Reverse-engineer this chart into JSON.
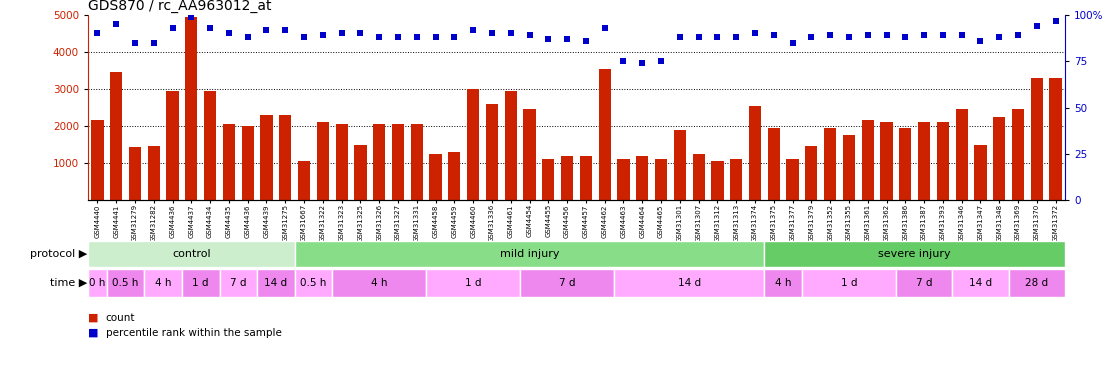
{
  "title": "GDS870 / rc_AA963012_at",
  "samples": [
    "GSM4440",
    "GSM4441",
    "GSM31279",
    "GSM31282",
    "GSM4436",
    "GSM4437",
    "GSM4434",
    "GSM4435",
    "GSM4436",
    "GSM4439",
    "GSM31275",
    "GSM31667",
    "GSM31322",
    "GSM31323",
    "GSM31325",
    "GSM31326",
    "GSM31327",
    "GSM31331",
    "GSM4458",
    "GSM4459",
    "GSM4460",
    "GSM31336",
    "GSM4461",
    "GSM4454",
    "GSM4455",
    "GSM4456",
    "GSM4457",
    "GSM4462",
    "GSM4463",
    "GSM4464",
    "GSM4465",
    "GSM31301",
    "GSM31307",
    "GSM31312",
    "GSM31313",
    "GSM31374",
    "GSM31375",
    "GSM31377",
    "GSM31379",
    "GSM31352",
    "GSM31355",
    "GSM31361",
    "GSM31362",
    "GSM31386",
    "GSM31387",
    "GSM31393",
    "GSM31346",
    "GSM31347",
    "GSM31348",
    "GSM31369",
    "GSM31370",
    "GSM31372"
  ],
  "counts": [
    2150,
    3450,
    1420,
    1460,
    2950,
    4950,
    2950,
    2050,
    2000,
    2300,
    2300,
    1050,
    2100,
    2050,
    1500,
    2050,
    2050,
    2050,
    1250,
    1300,
    3000,
    2600,
    2950,
    2450,
    1100,
    1200,
    1200,
    3550,
    1100,
    1200,
    1100,
    1900,
    1250,
    1050,
    1100,
    2550,
    1950,
    1100,
    1450,
    1950,
    1750,
    2150,
    2100,
    1950,
    2100,
    2100,
    2450,
    1500,
    2250,
    2450,
    3300,
    3300
  ],
  "percentiles": [
    90,
    95,
    85,
    85,
    93,
    99,
    93,
    90,
    88,
    92,
    92,
    88,
    89,
    90,
    90,
    88,
    88,
    88,
    88,
    88,
    92,
    90,
    90,
    89,
    87,
    87,
    86,
    93,
    75,
    74,
    75,
    88,
    88,
    88,
    88,
    90,
    89,
    85,
    88,
    89,
    88,
    89,
    89,
    88,
    89,
    89,
    89,
    86,
    88,
    89,
    94,
    97
  ],
  "bar_color": "#cc2200",
  "dot_color": "#0000cc",
  "ylim_left": [
    0,
    5000
  ],
  "ylim_right": [
    0,
    100
  ],
  "yticks_left": [
    1000,
    2000,
    3000,
    4000,
    5000
  ],
  "yticks_right": [
    0,
    25,
    50,
    75,
    100
  ],
  "protocol_groups": [
    {
      "label": "control",
      "start": 0,
      "end": 11,
      "color": "#cceecc"
    },
    {
      "label": "mild injury",
      "start": 11,
      "end": 36,
      "color": "#88dd88"
    },
    {
      "label": "severe injury",
      "start": 36,
      "end": 52,
      "color": "#66cc66"
    }
  ],
  "time_groups": [
    {
      "label": "0 h",
      "start": 0,
      "end": 1,
      "color": "#ffaaff"
    },
    {
      "label": "0.5 h",
      "start": 1,
      "end": 3,
      "color": "#ee88ee"
    },
    {
      "label": "4 h",
      "start": 3,
      "end": 5,
      "color": "#ffaaff"
    },
    {
      "label": "1 d",
      "start": 5,
      "end": 7,
      "color": "#ee88ee"
    },
    {
      "label": "7 d",
      "start": 7,
      "end": 9,
      "color": "#ffaaff"
    },
    {
      "label": "14 d",
      "start": 9,
      "end": 11,
      "color": "#ee88ee"
    },
    {
      "label": "0.5 h",
      "start": 11,
      "end": 13,
      "color": "#ffaaff"
    },
    {
      "label": "4 h",
      "start": 13,
      "end": 18,
      "color": "#ee88ee"
    },
    {
      "label": "1 d",
      "start": 18,
      "end": 23,
      "color": "#ffaaff"
    },
    {
      "label": "7 d",
      "start": 23,
      "end": 28,
      "color": "#ee88ee"
    },
    {
      "label": "14 d",
      "start": 28,
      "end": 36,
      "color": "#ffaaff"
    },
    {
      "label": "4 h",
      "start": 36,
      "end": 38,
      "color": "#ee88ee"
    },
    {
      "label": "1 d",
      "start": 38,
      "end": 43,
      "color": "#ffaaff"
    },
    {
      "label": "7 d",
      "start": 43,
      "end": 46,
      "color": "#ee88ee"
    },
    {
      "label": "14 d",
      "start": 46,
      "end": 49,
      "color": "#ffaaff"
    },
    {
      "label": "28 d",
      "start": 49,
      "end": 52,
      "color": "#ee88ee"
    }
  ],
  "bg_color": "#ffffff",
  "label_left": "protocol",
  "label_time": "time",
  "legend_count": "count",
  "legend_pct": "percentile rank within the sample"
}
